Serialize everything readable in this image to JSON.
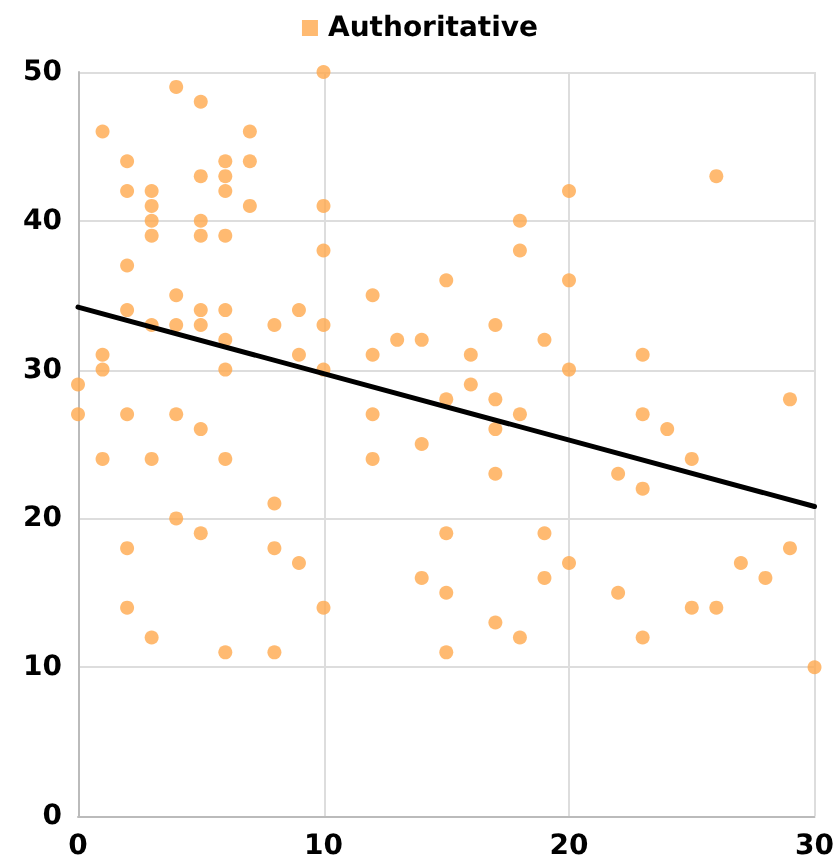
{
  "chart_data": {
    "type": "scatter",
    "xlim": [
      0,
      30
    ],
    "xticks": [
      0,
      10,
      20,
      30
    ],
    "ylim": [
      0,
      50
    ],
    "yticks": [
      0,
      10,
      20,
      30,
      40,
      50
    ],
    "grid": true,
    "legend": "top",
    "marker": "circle",
    "series": [
      {
        "name": "Authoritative",
        "color": "#ffa94d",
        "x": [
          0,
          0,
          1,
          1,
          1,
          1,
          2,
          2,
          2,
          2,
          2,
          2,
          2,
          3,
          3,
          3,
          3,
          3,
          3,
          3,
          4,
          4,
          4,
          4,
          4,
          5,
          5,
          5,
          5,
          5,
          5,
          5,
          5,
          6,
          6,
          6,
          6,
          6,
          6,
          6,
          6,
          6,
          7,
          7,
          7,
          8,
          8,
          8,
          8,
          9,
          9,
          9,
          10,
          10,
          10,
          10,
          10,
          10,
          12,
          12,
          12,
          12,
          13,
          14,
          14,
          14,
          15,
          15,
          15,
          15,
          15,
          16,
          16,
          17,
          17,
          17,
          17,
          17,
          18,
          18,
          18,
          18,
          19,
          19,
          19,
          20,
          20,
          20,
          20,
          22,
          22,
          23,
          23,
          23,
          23,
          24,
          25,
          25,
          26,
          26,
          27,
          28,
          29,
          29,
          30
        ],
        "values": [
          27,
          29,
          46,
          31,
          30,
          24,
          44,
          42,
          37,
          34,
          27,
          18,
          14,
          42,
          41,
          40,
          39,
          33,
          24,
          12,
          49,
          35,
          33,
          27,
          20,
          48,
          43,
          40,
          39,
          34,
          33,
          26,
          19,
          44,
          43,
          42,
          39,
          34,
          32,
          30,
          24,
          11,
          46,
          44,
          41,
          33,
          21,
          18,
          11,
          34,
          31,
          17,
          50,
          41,
          38,
          33,
          30,
          14,
          35,
          31,
          27,
          24,
          32,
          32,
          25,
          16,
          36,
          28,
          19,
          15,
          11,
          31,
          29,
          33,
          28,
          26,
          23,
          13,
          40,
          38,
          27,
          12,
          32,
          19,
          16,
          42,
          36,
          30,
          17,
          23,
          15,
          31,
          27,
          22,
          12,
          26,
          24,
          14,
          43,
          14,
          17,
          16,
          28,
          18,
          10
        ]
      },
      {
        "type": "line",
        "color": "#000000",
        "marker": "none",
        "x": [
          0,
          30
        ],
        "values": [
          34.2,
          20.8
        ]
      }
    ]
  }
}
